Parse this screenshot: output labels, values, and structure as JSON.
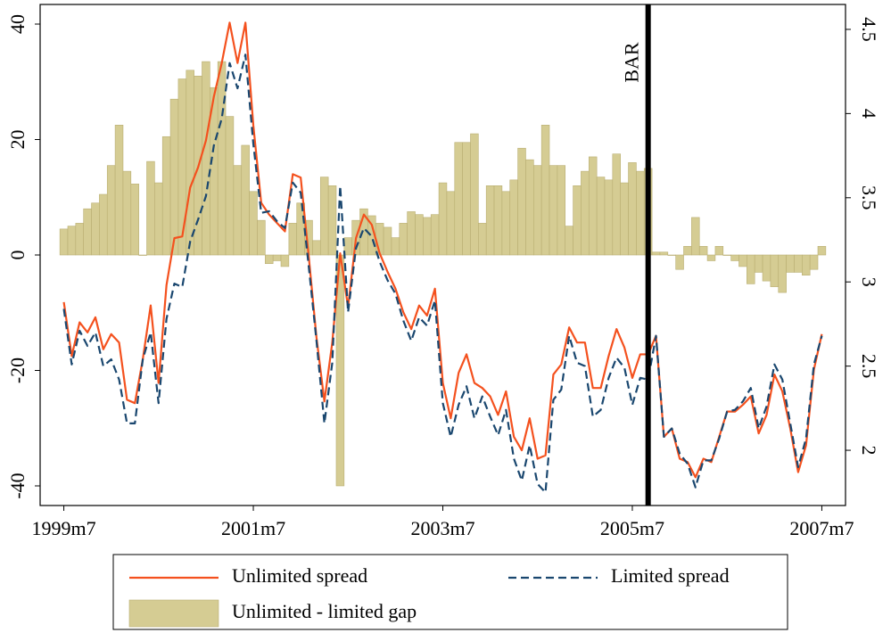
{
  "chart_data": {
    "type": "combo",
    "x": [
      "1999m7",
      "1999m8",
      "1999m9",
      "1999m10",
      "1999m11",
      "1999m12",
      "2000m1",
      "2000m2",
      "2000m3",
      "2000m4",
      "2000m5",
      "2000m6",
      "2000m7",
      "2000m8",
      "2000m9",
      "2000m10",
      "2000m11",
      "2000m12",
      "2001m1",
      "2001m2",
      "2001m3",
      "2001m4",
      "2001m5",
      "2001m6",
      "2001m7",
      "2001m8",
      "2001m9",
      "2001m10",
      "2001m11",
      "2001m12",
      "2002m1",
      "2002m2",
      "2002m3",
      "2002m4",
      "2002m5",
      "2002m6",
      "2002m7",
      "2002m8",
      "2002m9",
      "2002m10",
      "2002m11",
      "2002m12",
      "2003m1",
      "2003m2",
      "2003m3",
      "2003m4",
      "2003m5",
      "2003m6",
      "2003m7",
      "2003m8",
      "2003m9",
      "2003m10",
      "2003m11",
      "2003m12",
      "2004m1",
      "2004m2",
      "2004m3",
      "2004m4",
      "2004m5",
      "2004m6",
      "2004m7",
      "2004m8",
      "2004m9",
      "2004m10",
      "2004m11",
      "2004m12",
      "2005m1",
      "2005m2",
      "2005m3",
      "2005m4",
      "2005m5",
      "2005m6",
      "2005m7",
      "2005m8",
      "2005m9",
      "2005m10",
      "2005m11",
      "2005m12",
      "2006m1",
      "2006m2",
      "2006m3",
      "2006m4",
      "2006m5",
      "2006m6",
      "2006m7",
      "2006m8",
      "2006m9",
      "2006m10",
      "2006m11",
      "2006m12",
      "2007m1",
      "2007m2",
      "2007m3",
      "2007m4",
      "2007m5",
      "2007m6",
      "2007m7"
    ],
    "series": [
      {
        "name": "Unlimited - limited gap",
        "type": "bar",
        "color": "#d5cc93",
        "values": [
          4.5,
          5,
          5.5,
          8,
          9,
          10.5,
          15.5,
          22.5,
          14.5,
          12.3,
          0,
          16.2,
          12.5,
          20.5,
          27,
          30.5,
          32,
          31,
          33.5,
          29,
          33.5,
          24,
          15.5,
          19,
          11,
          6,
          -1.5,
          -1,
          -2,
          5.5,
          9,
          6,
          2.5,
          13.5,
          12,
          -40,
          3,
          6,
          8,
          6.8,
          5.5,
          4.8,
          3,
          5.5,
          7.5,
          7,
          6.5,
          7,
          12.5,
          11,
          19.5,
          19.5,
          21,
          5.5,
          12,
          12,
          11,
          13,
          18.5,
          16.5,
          15.5,
          22.5,
          15.5,
          15.5,
          5,
          12,
          14.5,
          17,
          13.5,
          13,
          17.5,
          12.5,
          16,
          14.5,
          15,
          0.5,
          0.5,
          0,
          -2.5,
          1.5,
          6.5,
          1.5,
          -1,
          1.5,
          0,
          -1,
          -2,
          -5,
          -3,
          -4.5,
          -5.5,
          -6.5,
          -3,
          -3,
          -3.5,
          -2.5,
          1.5
        ]
      },
      {
        "name": "Unlimited spread",
        "type": "line",
        "axis": "y2",
        "color": "#f4511e",
        "dash": false,
        "values": [
          2.88,
          2.56,
          2.76,
          2.7,
          2.79,
          2.6,
          2.69,
          2.64,
          2.3,
          2.28,
          2.54,
          2.86,
          2.4,
          2.98,
          3.26,
          3.27,
          3.56,
          3.68,
          3.84,
          4.1,
          4.3,
          4.54,
          4.3,
          4.54,
          3.93,
          3.47,
          3.4,
          3.35,
          3.3,
          3.64,
          3.62,
          3.16,
          2.67,
          2.29,
          2.64,
          3.17,
          2.85,
          3.26,
          3.4,
          3.34,
          3.17,
          3.06,
          2.96,
          2.82,
          2.72,
          2.86,
          2.8,
          2.96,
          2.4,
          2.19,
          2.46,
          2.57,
          2.4,
          2.37,
          2.32,
          2.21,
          2.35,
          2.08,
          2.0,
          2.19,
          1.95,
          1.97,
          2.45,
          2.51,
          2.73,
          2.64,
          2.64,
          2.37,
          2.37,
          2.56,
          2.72,
          2.61,
          2.43,
          2.57,
          2.57,
          2.68,
          2.08,
          2.13,
          1.95,
          1.93,
          1.84,
          1.95,
          1.93,
          2.08,
          2.23,
          2.23,
          2.27,
          2.32,
          2.1,
          2.21,
          2.45,
          2.35,
          2.13,
          1.87,
          2.03,
          2.48,
          2.69
        ]
      },
      {
        "name": "Limited spread",
        "type": "line",
        "axis": "y2",
        "color": "#1a476f",
        "dash": true,
        "values": [
          2.84,
          2.51,
          2.71,
          2.62,
          2.7,
          2.5,
          2.54,
          2.42,
          2.16,
          2.16,
          2.54,
          2.7,
          2.28,
          2.78,
          2.99,
          2.97,
          3.24,
          3.37,
          3.51,
          3.81,
          3.97,
          4.3,
          4.15,
          4.35,
          3.82,
          3.41,
          3.42,
          3.36,
          3.32,
          3.59,
          3.53,
          3.1,
          2.65,
          2.16,
          2.52,
          3.57,
          2.82,
          3.2,
          3.32,
          3.27,
          3.12,
          3.01,
          2.93,
          2.77,
          2.65,
          2.79,
          2.74,
          2.89,
          2.28,
          2.08,
          2.27,
          2.38,
          2.19,
          2.32,
          2.2,
          2.09,
          2.24,
          1.95,
          1.82,
          2.03,
          1.8,
          1.75,
          2.3,
          2.36,
          2.68,
          2.52,
          2.5,
          2.2,
          2.24,
          2.43,
          2.55,
          2.49,
          2.27,
          2.43,
          2.42,
          2.68,
          2.08,
          2.13,
          1.98,
          1.92,
          1.78,
          1.94,
          1.94,
          2.07,
          2.23,
          2.24,
          2.29,
          2.37,
          2.13,
          2.26,
          2.51,
          2.42,
          2.16,
          1.9,
          2.07,
          2.51,
          2.68
        ]
      }
    ],
    "xlim": [
      "1999m4",
      "2007m10"
    ],
    "xticks": [
      "1999m7",
      "2001m7",
      "2003m7",
      "2005m7",
      "2007m7"
    ],
    "ylim": [
      -43.4,
      43.4
    ],
    "yticks": [
      -40,
      -20,
      0,
      20,
      40
    ],
    "y2lim": [
      1.672,
      4.648
    ],
    "y2ticks": [
      2,
      2.5,
      3,
      3.5,
      4,
      4.5
    ],
    "annotations": [
      {
        "text": "BAR",
        "x": "2005m9"
      }
    ],
    "grid": false,
    "legend": "bottom"
  }
}
